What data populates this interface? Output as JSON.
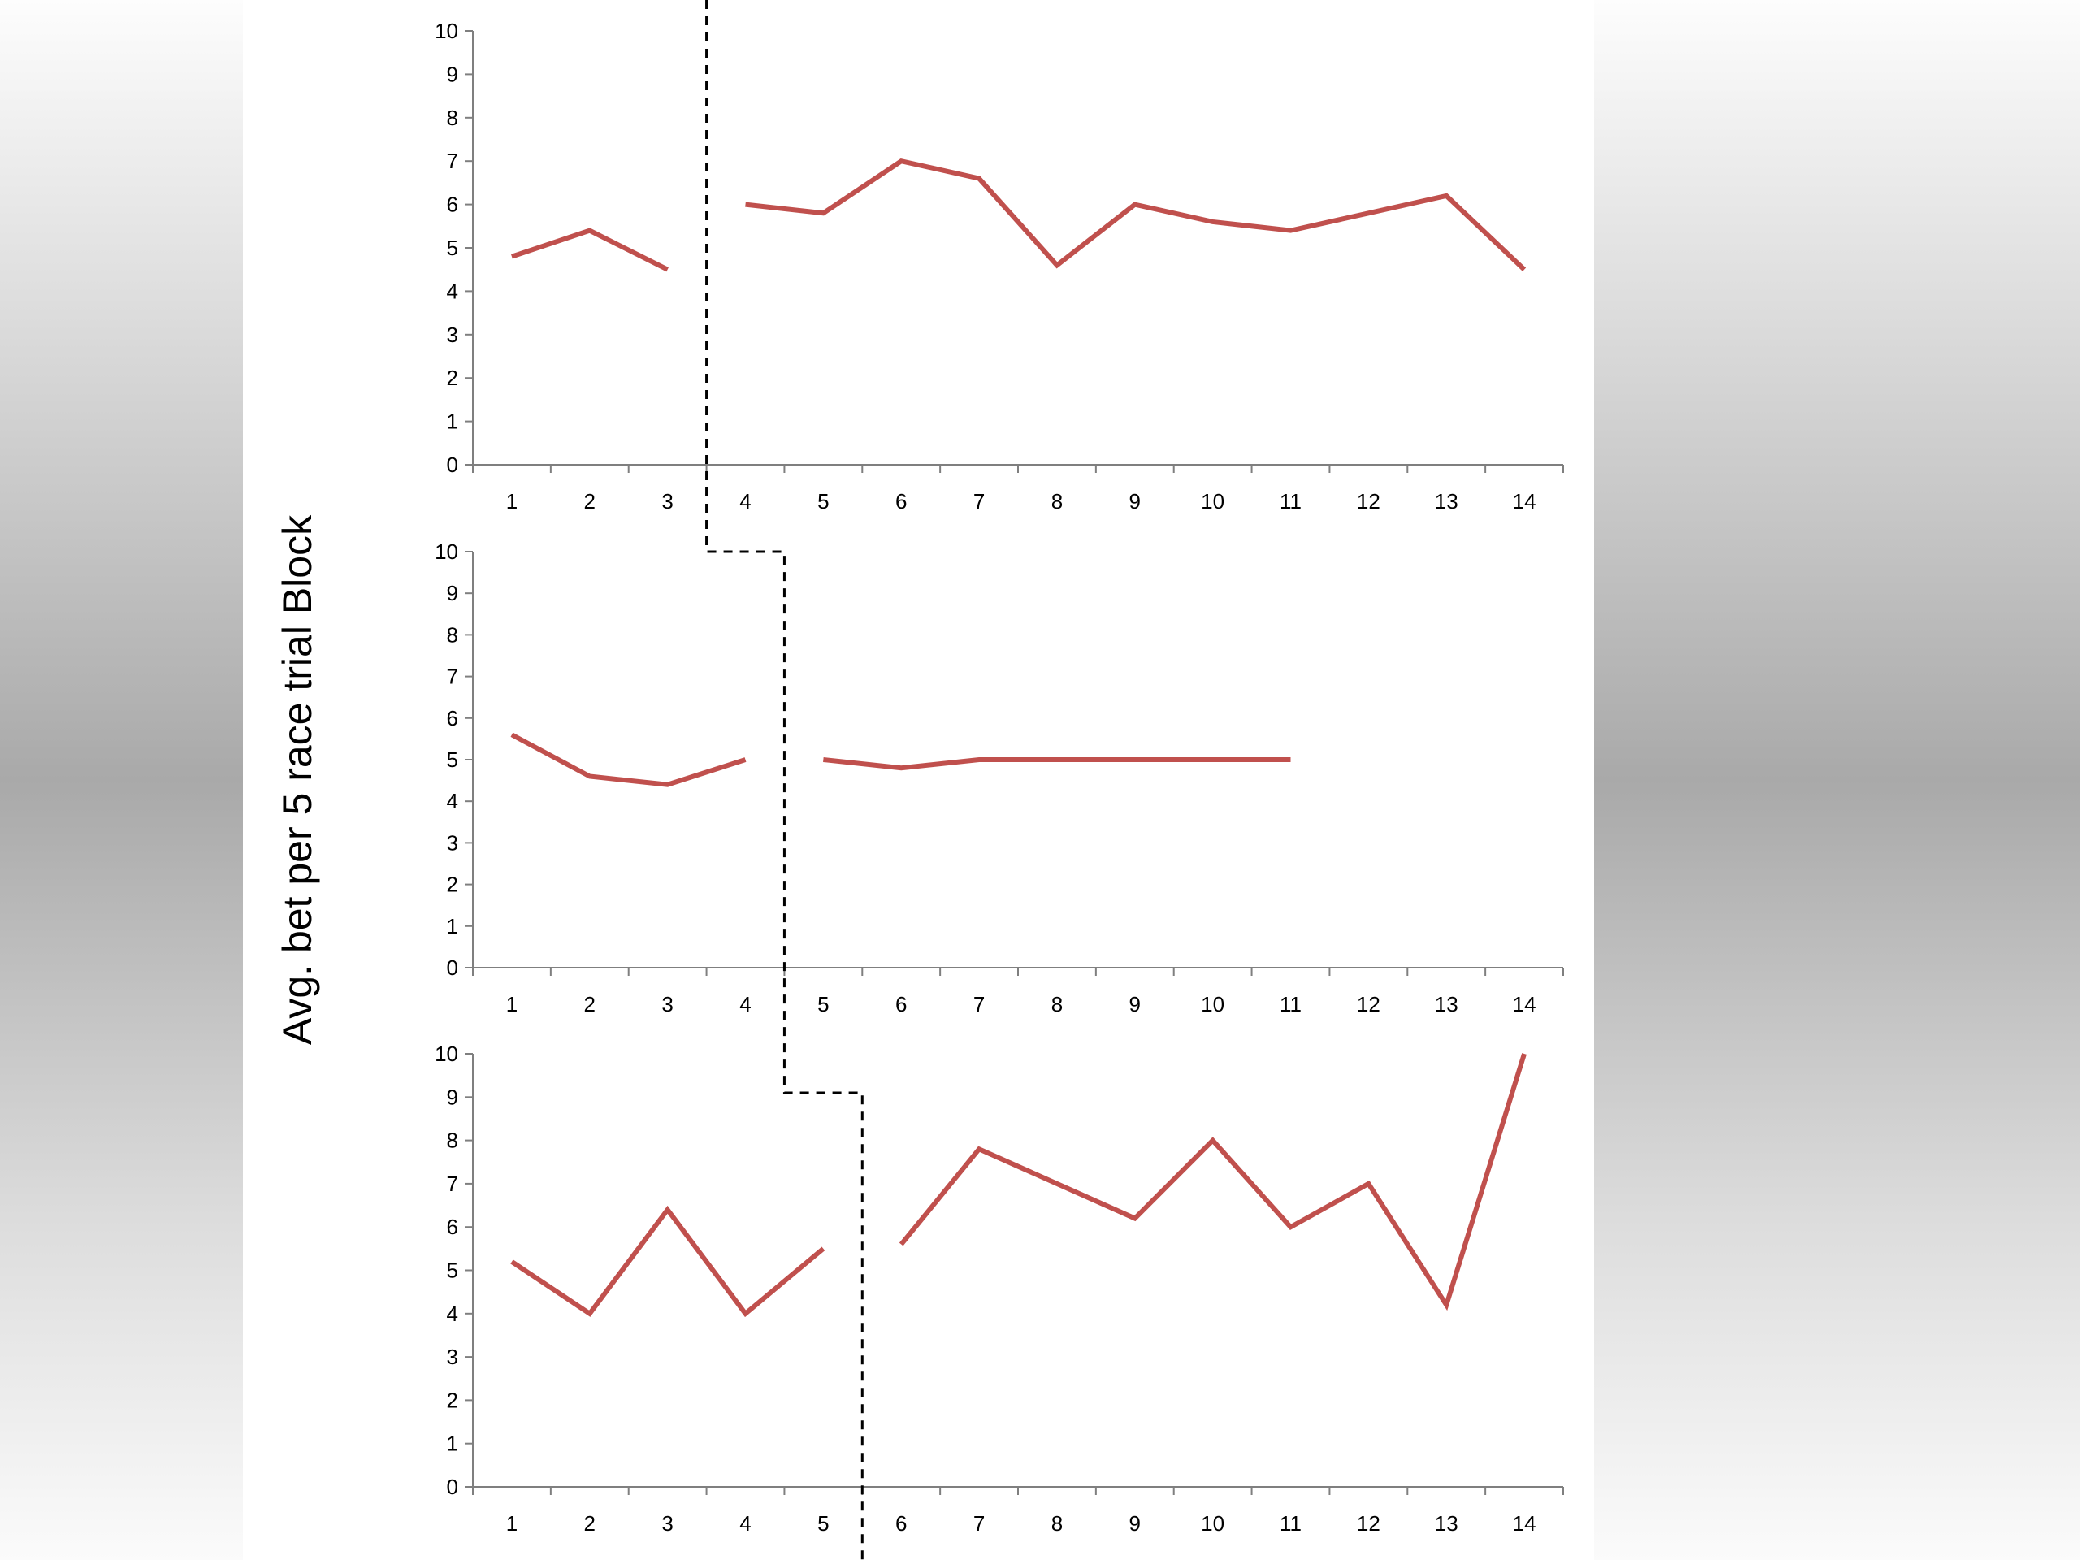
{
  "ylabel": "Avg. bet per 5 race trial Block",
  "colors": {
    "series": "#c0504d",
    "series_highlight": "#c00000",
    "axis": "#7f7f7f",
    "boundary": "#000000"
  },
  "chart_data": [
    {
      "type": "line",
      "x": [
        1,
        2,
        3,
        4,
        5,
        6,
        7,
        8,
        9,
        10,
        11,
        12,
        13,
        14
      ],
      "ylim": [
        0,
        10
      ],
      "yticks": [
        0,
        1,
        2,
        3,
        4,
        5,
        6,
        7,
        8,
        9,
        10
      ],
      "segments": [
        {
          "x": [
            1,
            2,
            3
          ],
          "values": [
            4.8,
            5.4,
            4.5
          ]
        },
        {
          "x": [
            4,
            5,
            6,
            7,
            8,
            9,
            10,
            11,
            12,
            13,
            14
          ],
          "values": [
            6.0,
            5.8,
            7.0,
            6.6,
            4.6,
            6.0,
            5.6,
            5.4,
            5.8,
            6.2,
            4.5
          ]
        }
      ],
      "boundary_after_x": 3,
      "grid": false
    },
    {
      "type": "line",
      "x": [
        1,
        2,
        3,
        4,
        5,
        6,
        7,
        8,
        9,
        10,
        11,
        12,
        13,
        14
      ],
      "ylim": [
        0,
        10
      ],
      "yticks": [
        0,
        1,
        2,
        3,
        4,
        5,
        6,
        7,
        8,
        9,
        10
      ],
      "segments": [
        {
          "x": [
            1,
            2,
            3,
            4
          ],
          "values": [
            5.6,
            4.6,
            4.4,
            5.0
          ]
        },
        {
          "x": [
            5,
            6,
            7,
            8,
            9,
            10,
            11
          ],
          "values": [
            5.0,
            4.8,
            5.0,
            5.0,
            5.0,
            5.0,
            5.0
          ]
        }
      ],
      "boundary_after_x": 4,
      "grid": false
    },
    {
      "type": "line",
      "x": [
        1,
        2,
        3,
        4,
        5,
        6,
        7,
        8,
        9,
        10,
        11,
        12,
        13,
        14
      ],
      "ylim": [
        0,
        10
      ],
      "yticks": [
        0,
        1,
        2,
        3,
        4,
        5,
        6,
        7,
        8,
        9,
        10
      ],
      "segments": [
        {
          "x": [
            1,
            2,
            3,
            4,
            5
          ],
          "values": [
            5.2,
            4.0,
            6.4,
            4.0,
            5.5
          ]
        },
        {
          "x": [
            6,
            7,
            8,
            9,
            10,
            11,
            12,
            13,
            14
          ],
          "values": [
            5.6,
            7.8,
            7.0,
            6.2,
            8.0,
            6.0,
            7.0,
            4.2,
            10.0
          ]
        }
      ],
      "boundary_after_x": 5,
      "grid": false
    }
  ]
}
